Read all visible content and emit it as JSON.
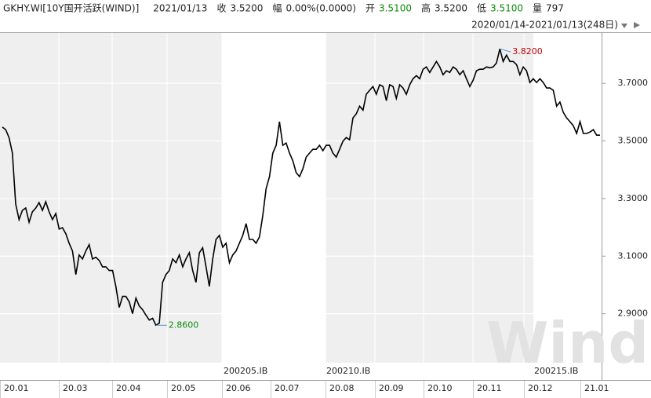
{
  "header": {
    "symbol": "GKHY.WI[10Y国开活跃(WIND)]",
    "date": "2021/01/13",
    "fields": [
      {
        "label": "收",
        "value": "3.5200"
      },
      {
        "label": "幅",
        "value": "0.00%(0.0000)"
      },
      {
        "label": "开",
        "value": "3.5100"
      },
      {
        "label": "高",
        "value": "3.5200"
      },
      {
        "label": "低",
        "value": "3.5100"
      },
      {
        "label": "量",
        "value": "797"
      }
    ],
    "range": "2020/01/14-2021/01/13(248日)"
  },
  "chart_data": {
    "type": "line",
    "color": "#000000",
    "values": [
      3.548,
      3.539,
      3.512,
      3.458,
      3.281,
      3.227,
      3.259,
      3.267,
      3.218,
      3.254,
      3.267,
      3.286,
      3.259,
      3.289,
      3.254,
      3.227,
      3.248,
      3.194,
      3.199,
      3.178,
      3.145,
      3.118,
      3.036,
      3.104,
      3.09,
      3.118,
      3.14,
      3.09,
      3.096,
      3.085,
      3.063,
      3.063,
      3.05,
      3.05,
      2.995,
      2.922,
      2.96,
      2.96,
      2.941,
      2.9,
      2.954,
      2.927,
      2.914,
      2.895,
      2.878,
      2.884,
      2.86,
      2.867,
      3.009,
      3.036,
      3.05,
      3.09,
      3.077,
      3.104,
      3.063,
      3.09,
      3.112,
      3.05,
      3.009,
      3.112,
      3.129,
      3.063,
      2.995,
      3.09,
      3.158,
      3.172,
      3.131,
      3.145,
      3.077,
      3.104,
      3.118,
      3.145,
      3.172,
      3.213,
      3.158,
      3.158,
      3.145,
      3.167,
      3.24,
      3.335,
      3.376,
      3.458,
      3.485,
      3.567,
      3.485,
      3.493,
      3.458,
      3.431,
      3.39,
      3.376,
      3.403,
      3.444,
      3.458,
      3.471,
      3.471,
      3.485,
      3.466,
      3.485,
      3.485,
      3.458,
      3.444,
      3.471,
      3.499,
      3.512,
      3.504,
      3.58,
      3.594,
      3.621,
      3.607,
      3.662,
      3.676,
      3.689,
      3.662,
      3.695,
      3.689,
      3.64,
      3.695,
      3.689,
      3.648,
      3.695,
      3.684,
      3.662,
      3.695,
      3.716,
      3.727,
      3.716,
      3.749,
      3.757,
      3.738,
      3.757,
      3.776,
      3.757,
      3.73,
      3.744,
      3.738,
      3.757,
      3.749,
      3.73,
      3.744,
      3.716,
      3.689,
      3.711,
      3.744,
      3.749,
      3.749,
      3.757,
      3.754,
      3.757,
      3.771,
      3.82,
      3.776,
      3.798,
      3.776,
      3.776,
      3.765,
      3.73,
      3.757,
      3.744,
      3.703,
      3.716,
      3.703,
      3.716,
      3.703,
      3.684,
      3.684,
      3.676,
      3.621,
      3.635,
      3.599,
      3.58,
      3.567,
      3.553,
      3.526,
      3.567,
      3.526,
      3.526,
      3.531,
      3.539,
      3.52,
      3.52
    ],
    "max_label": "3.8200",
    "min_label": "2.8600",
    "ylim": [
      2.73,
      3.875
    ],
    "yticks": [
      {
        "value": 2.9,
        "label": "2.9000"
      },
      {
        "value": 3.1,
        "label": "3.1000"
      },
      {
        "value": 3.3,
        "label": "3.3000"
      },
      {
        "value": 3.5,
        "label": "3.5000"
      },
      {
        "value": 3.7,
        "label": "3.7000"
      }
    ],
    "xticks": [
      "20.01",
      "20.03",
      "20.04",
      "20.05",
      "20.06",
      "20.07",
      "20.08",
      "20.09",
      "20.10",
      "20.11",
      "20.12",
      "21.01"
    ],
    "contracts": [
      "200205.IB",
      "200210.IB",
      "200215.IB"
    ],
    "watermark": "Wind",
    "grid": true
  }
}
